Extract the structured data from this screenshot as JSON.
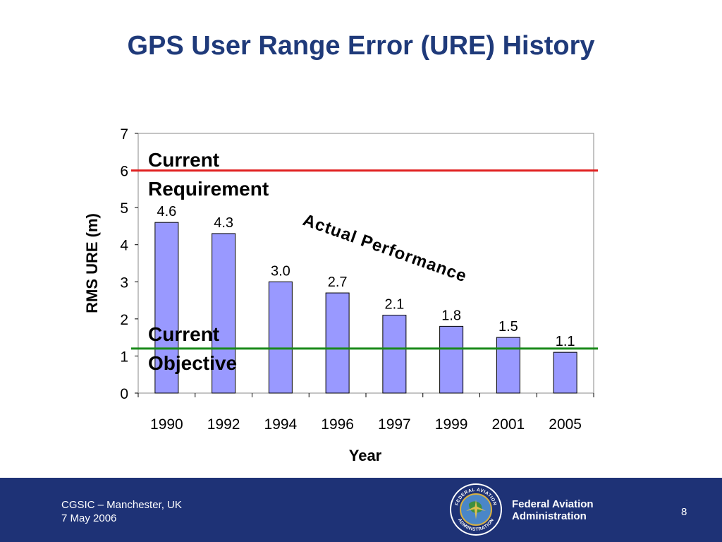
{
  "slide": {
    "title": "GPS User Range Error (URE) History"
  },
  "chart_data": {
    "type": "bar",
    "categories": [
      "1990",
      "1992",
      "1994",
      "1996",
      "1997",
      "1999",
      "2001",
      "2005"
    ],
    "values": [
      4.6,
      4.3,
      3.0,
      2.7,
      2.1,
      1.8,
      1.5,
      1.1
    ],
    "data_labels": [
      "4.6",
      "4.3",
      "3.0",
      "2.7",
      "2.1",
      "1.8",
      "1.5",
      "1.1"
    ],
    "xlabel": "Year",
    "ylabel": "RMS URE (m)",
    "ylim": [
      0,
      7
    ],
    "yticks": [
      "0",
      "1",
      "2",
      "3",
      "4",
      "5",
      "6",
      "7"
    ],
    "grid": false,
    "bar_color": "#9999ff",
    "reference_lines": [
      {
        "label_line1": "Current",
        "label_line2": "Requirement",
        "value": 6.0,
        "color": "#e02020"
      },
      {
        "label_line1": "Current",
        "label_line2": "Objective",
        "value": 1.2,
        "color": "#1a8a1a"
      }
    ],
    "annotation": "Actual Performance"
  },
  "footer": {
    "event": "CGSIC – Manchester, UK",
    "date": "7 May 2006",
    "agency_line1": "Federal Aviation",
    "agency_line2": "Administration",
    "page_number": "8",
    "seal_text_top": "FEDERAL AVIATION",
    "seal_text_bottom": "ADMINISTRATION",
    "background_color": "#1e3276"
  }
}
